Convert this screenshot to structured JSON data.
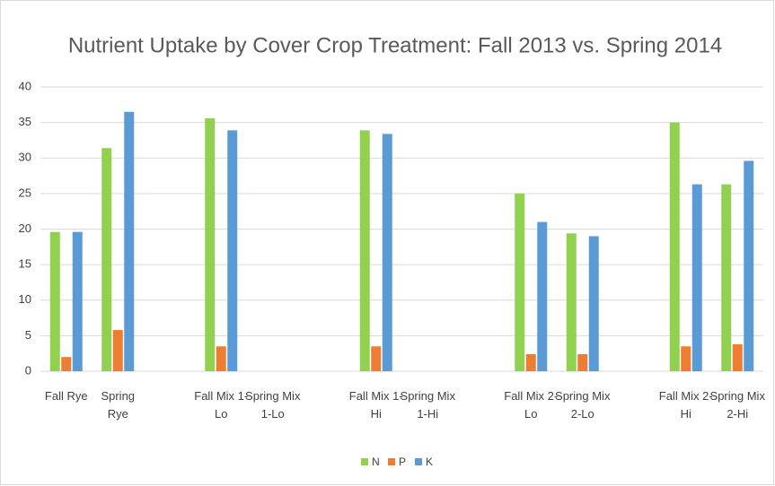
{
  "chart_data": {
    "type": "bar",
    "title": "Nutrient Uptake by Cover Crop Treatment: Fall 2013 vs. Spring 2014",
    "categories": [
      "Fall Rye",
      "Spring Rye",
      null,
      "Fall Mix 1-Lo",
      "Spring Mix 1-Lo",
      null,
      "Fall Mix 1-Hi",
      "Spring Mix 1-Hi",
      null,
      "Fall Mix 2-Lo",
      "Spring Mix 2-Lo",
      null,
      "Fall Mix 2-Hi",
      "Spring Mix 2-Hi"
    ],
    "series": [
      {
        "name": "N",
        "color": "#92d050",
        "values": [
          19.6,
          31.4,
          null,
          35.6,
          null,
          null,
          33.9,
          null,
          null,
          25,
          19.4,
          null,
          35,
          26.3
        ]
      },
      {
        "name": "P",
        "color": "#ed7d31",
        "values": [
          2,
          5.8,
          null,
          3.5,
          null,
          null,
          3.5,
          null,
          null,
          2.4,
          2.4,
          null,
          3.5,
          3.8
        ]
      },
      {
        "name": "K",
        "color": "#5b9bd5",
        "values": [
          19.6,
          36.5,
          null,
          33.9,
          null,
          null,
          33.4,
          null,
          null,
          21,
          19,
          null,
          26.3,
          29.6
        ]
      }
    ],
    "ylim": [
      0,
      40
    ],
    "yticks": [
      0,
      5,
      10,
      15,
      20,
      25,
      30,
      35,
      40
    ],
    "grid": true,
    "legend": "bottom"
  }
}
